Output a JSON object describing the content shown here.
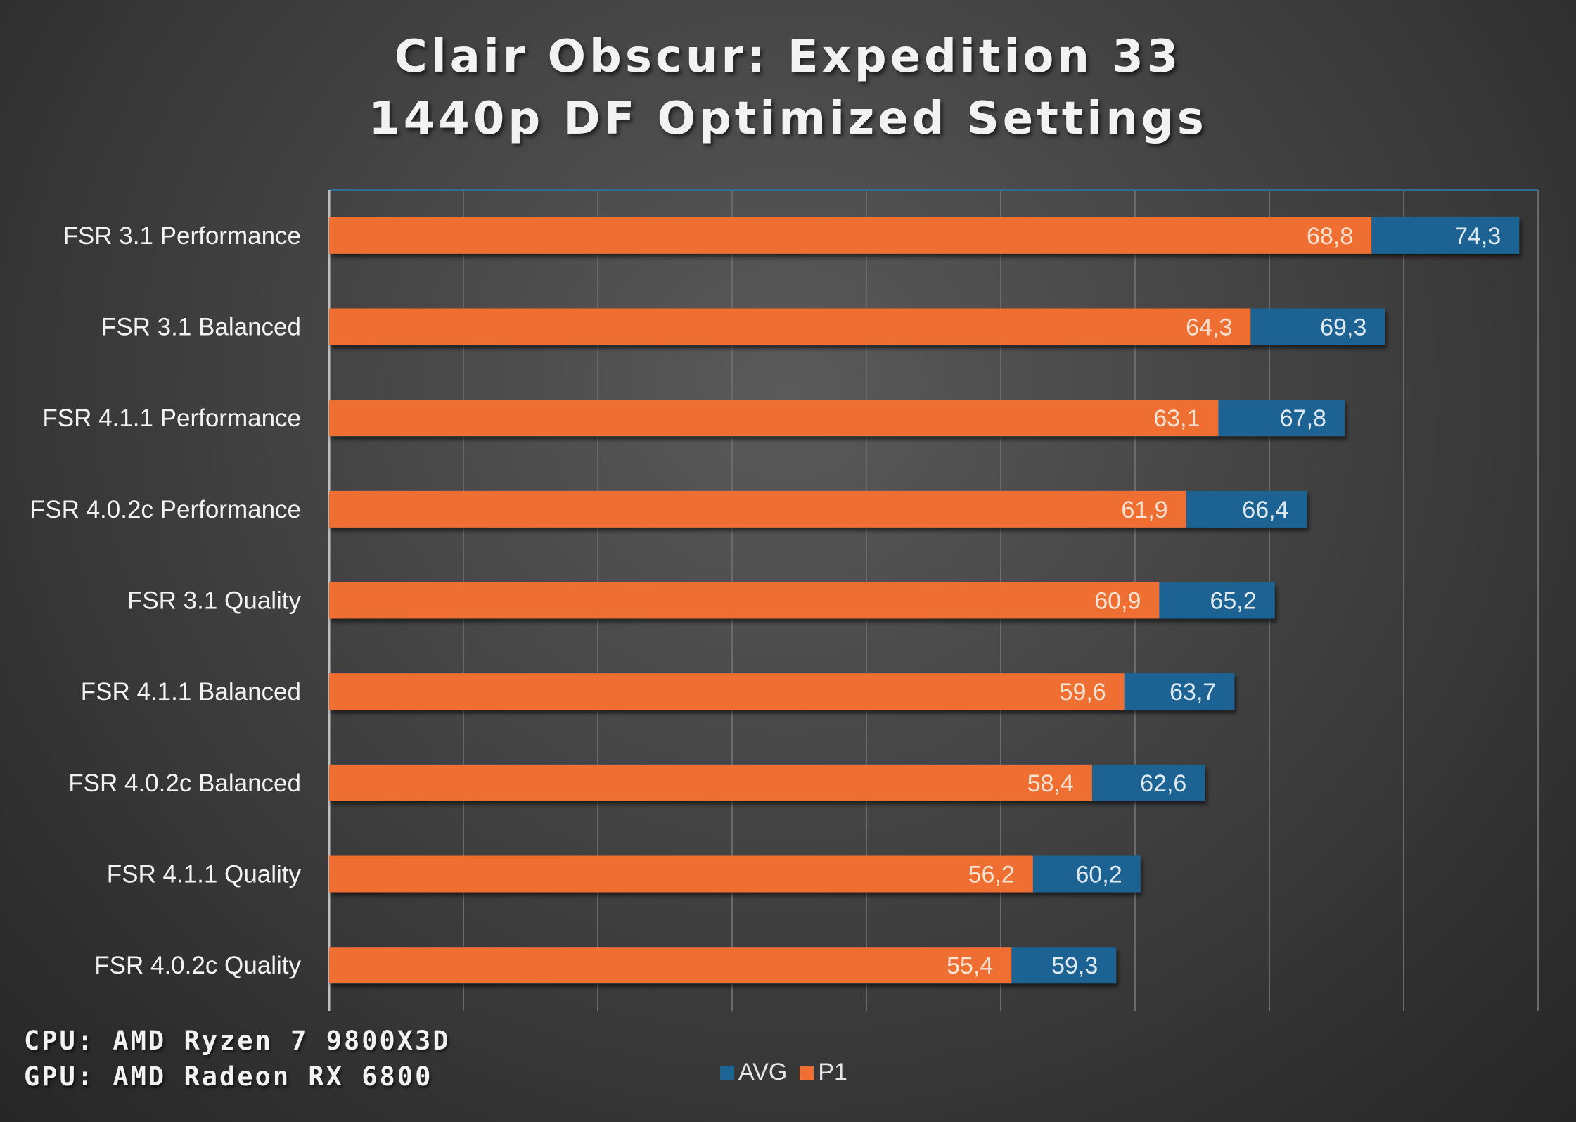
{
  "colors": {
    "avg": "#1b6494",
    "p1": "#ee6f31",
    "grid": "#6a6a6a",
    "axis": "#bfbfbf"
  },
  "chart_data": {
    "type": "bar",
    "orientation": "horizontal",
    "title": [
      "Clair Obscur: Expedition 33",
      "1440p DF Optimized Settings"
    ],
    "categories": [
      "FSR 3.1 Performance",
      "FSR 3.1 Balanced",
      "FSR 4.1.1 Performance",
      "FSR 4.0.2c Performance",
      "FSR 3.1 Quality",
      "FSR 4.1.1 Balanced",
      "FSR 4.0.2c Balanced",
      "FSR 4.1.1 Quality",
      "FSR 4.0.2c Quality"
    ],
    "series": [
      {
        "name": "AVG",
        "values": [
          74.3,
          69.3,
          67.8,
          66.4,
          65.2,
          63.7,
          62.6,
          60.2,
          59.3
        ],
        "labels": [
          "74,3",
          "69,3",
          "67,8",
          "66,4",
          "65,2",
          "63,7",
          "62,6",
          "60,2",
          "59,3"
        ]
      },
      {
        "name": "P1",
        "values": [
          68.8,
          64.3,
          63.1,
          61.9,
          60.9,
          59.6,
          58.4,
          56.2,
          55.4
        ],
        "labels": [
          "68,8",
          "64,3",
          "63,1",
          "61,9",
          "60,9",
          "59,6",
          "58,4",
          "56,2",
          "55,4"
        ]
      }
    ],
    "xlim": [
      30,
      75
    ],
    "grid": true,
    "legend": "bottom"
  },
  "notes": {
    "cpu": "CPU: AMD Ryzen 7 9800X3D",
    "gpu": "GPU: AMD Radeon RX 6800"
  },
  "legend": {
    "avg": "AVG",
    "p1": "P1"
  }
}
